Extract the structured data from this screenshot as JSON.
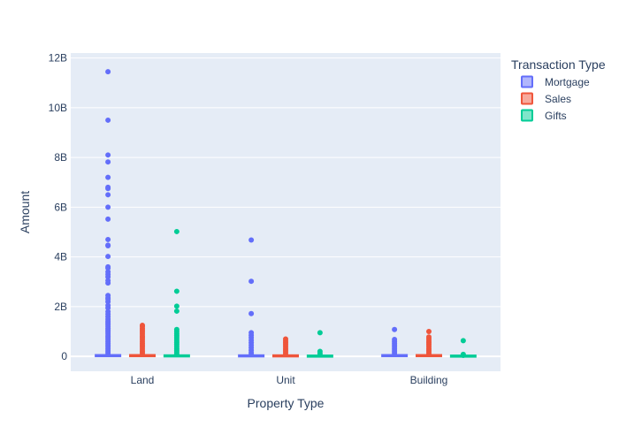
{
  "chart_data": {
    "type": "box",
    "xlabel": "Property Type",
    "ylabel": "Amount",
    "categories": [
      "Land",
      "Unit",
      "Building"
    ],
    "ylim": [
      -0.6,
      12.2
    ],
    "y_unit": "billions",
    "y_ticks": [
      0,
      2,
      4,
      6,
      8,
      10,
      12
    ],
    "y_tick_labels": [
      "0",
      "2B",
      "4B",
      "6B",
      "8B",
      "10B",
      "12B"
    ],
    "grid": true,
    "legend": {
      "title": "Transaction Type",
      "placement": "top-right"
    },
    "series": [
      {
        "name": "Mortgage",
        "color": "#636efa",
        "boxes": [
          {
            "category": "Land",
            "q1": 0,
            "median": 0.01,
            "q3": 0.03
          },
          {
            "category": "Unit",
            "q1": 0,
            "median": 0.01,
            "q3": 0.02
          },
          {
            "category": "Building",
            "q1": 0,
            "median": 0.01,
            "q3": 0.03
          }
        ],
        "outliers": [
          {
            "category": "Land",
            "values": [
              11.45,
              9.5,
              8.1,
              7.82,
              7.2,
              6.8,
              6.75,
              6.5,
              6.0,
              5.52,
              4.7,
              4.47,
              4.45,
              4.02,
              3.6,
              3.55,
              3.4,
              3.3,
              3.2,
              3.05,
              2.95,
              2.45,
              2.35,
              2.3,
              2.2,
              2.05,
              1.95,
              1.8,
              1.7,
              1.6,
              1.5,
              1.42,
              1.35,
              1.28,
              1.2,
              1.12,
              1.05,
              0.98,
              0.9,
              0.82,
              0.75,
              0.68,
              0.6,
              0.52,
              0.45,
              0.38,
              0.3,
              0.22,
              0.15,
              0.08
            ]
          },
          {
            "category": "Unit",
            "values": [
              4.68,
              3.02,
              1.72,
              0.95,
              0.85,
              0.75,
              0.65,
              0.55,
              0.45,
              0.35,
              0.25,
              0.15,
              0.08
            ]
          },
          {
            "category": "Building",
            "values": [
              1.08,
              0.68,
              0.6,
              0.52,
              0.45,
              0.38,
              0.3,
              0.22,
              0.15,
              0.08
            ]
          }
        ]
      },
      {
        "name": "Sales",
        "color": "#ef553b",
        "boxes": [
          {
            "category": "Land",
            "q1": 0,
            "median": 0.01,
            "q3": 0.03
          },
          {
            "category": "Unit",
            "q1": 0,
            "median": 0.01,
            "q3": 0.02
          },
          {
            "category": "Building",
            "q1": 0,
            "median": 0.01,
            "q3": 0.03
          }
        ],
        "outliers": [
          {
            "category": "Land",
            "values": [
              1.25,
              1.2,
              1.12,
              1.05,
              0.98,
              0.9,
              0.82,
              0.75,
              0.68,
              0.6,
              0.52,
              0.45,
              0.38,
              0.3,
              0.22,
              0.15,
              0.08
            ]
          },
          {
            "category": "Unit",
            "values": [
              0.7,
              0.62,
              0.55,
              0.48,
              0.4,
              0.32,
              0.25,
              0.18,
              0.1
            ]
          },
          {
            "category": "Building",
            "values": [
              1.0,
              0.78,
              0.7,
              0.62,
              0.55,
              0.48,
              0.4,
              0.32,
              0.25,
              0.18,
              0.1
            ]
          }
        ]
      },
      {
        "name": "Gifts",
        "color": "#00cc96",
        "boxes": [
          {
            "category": "Land",
            "q1": 0,
            "median": 0.01,
            "q3": 0.02
          },
          {
            "category": "Unit",
            "q1": 0,
            "median": 0.005,
            "q3": 0.01
          },
          {
            "category": "Building",
            "q1": 0,
            "median": 0.005,
            "q3": 0.01
          }
        ],
        "outliers": [
          {
            "category": "Land",
            "values": [
              5.02,
              2.62,
              2.02,
              1.82,
              1.08,
              1.0,
              0.92,
              0.85,
              0.78,
              0.7,
              0.62,
              0.55,
              0.48,
              0.4,
              0.32,
              0.25,
              0.18,
              0.1
            ]
          },
          {
            "category": "Unit",
            "values": [
              0.95,
              0.2,
              0.12,
              0.06
            ]
          },
          {
            "category": "Building",
            "values": [
              0.63,
              0.08,
              0.04
            ]
          }
        ]
      }
    ]
  }
}
